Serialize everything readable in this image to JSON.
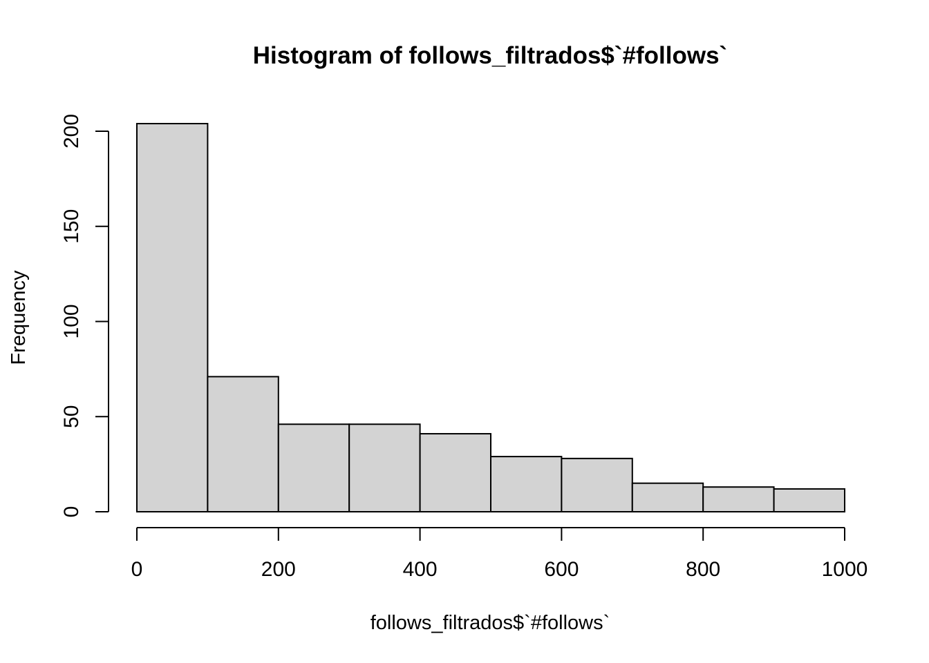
{
  "chart_data": {
    "type": "bar",
    "title": "Histogram of follows_filtrados$`#follows`",
    "xlabel": "follows_filtrados$`#follows`",
    "ylabel": "Frequency",
    "bins": [
      {
        "from": 0,
        "to": 100,
        "count": 204
      },
      {
        "from": 100,
        "to": 200,
        "count": 71
      },
      {
        "from": 200,
        "to": 300,
        "count": 46
      },
      {
        "from": 300,
        "to": 400,
        "count": 46
      },
      {
        "from": 400,
        "to": 500,
        "count": 41
      },
      {
        "from": 500,
        "to": 600,
        "count": 29
      },
      {
        "from": 600,
        "to": 700,
        "count": 28
      },
      {
        "from": 700,
        "to": 800,
        "count": 15
      },
      {
        "from": 800,
        "to": 900,
        "count": 13
      },
      {
        "from": 900,
        "to": 1000,
        "count": 12
      }
    ],
    "xlim": [
      0,
      1000
    ],
    "ylim": [
      0,
      204
    ],
    "x_ticks": [
      0,
      200,
      400,
      600,
      800,
      1000
    ],
    "y_ticks": [
      0,
      50,
      100,
      150,
      200
    ],
    "x_tick_labels": [
      "0",
      "200",
      "400",
      "600",
      "800",
      "1000"
    ],
    "y_tick_labels": [
      "0",
      "50",
      "100",
      "150",
      "200"
    ],
    "grid": false,
    "legend": "none",
    "colors": {
      "bar_fill": "#d3d3d3",
      "bar_stroke": "#000000",
      "background": "#ffffff"
    }
  }
}
